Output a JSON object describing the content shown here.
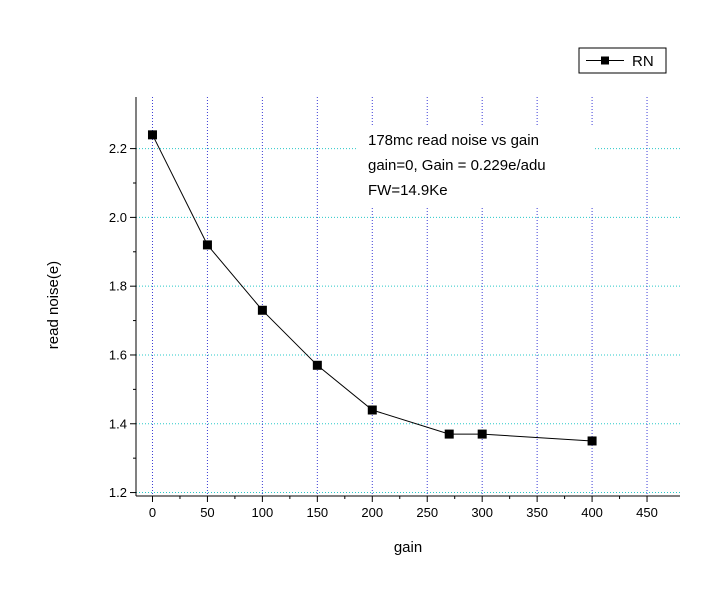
{
  "chart_data": {
    "type": "line",
    "x": [
      0,
      50,
      100,
      150,
      200,
      270,
      300,
      400
    ],
    "series": [
      {
        "name": "RN",
        "values": [
          2.24,
          1.92,
          1.73,
          1.57,
          1.44,
          1.37,
          1.37,
          1.35
        ]
      }
    ],
    "xlabel": "gain",
    "ylabel": "read noise(e)",
    "xlim": [
      -15,
      480
    ],
    "ylim": [
      1.19,
      2.35
    ],
    "xticks": [
      0,
      50,
      100,
      150,
      200,
      250,
      300,
      350,
      400,
      450
    ],
    "xtick_labels": [
      "0",
      "50",
      "100",
      "150",
      "200",
      "250",
      "300",
      "350",
      "400",
      "450"
    ],
    "yticks": [
      1.2,
      1.4,
      1.6,
      1.8,
      2.0,
      2.2
    ],
    "ytick_labels": [
      "1.2",
      "1.4",
      "1.6",
      "1.8",
      "2.0",
      "2.2"
    ],
    "annotations": [
      "178mc read noise vs gain",
      "gain=0, Gain = 0.229e/adu",
      "FW=14.9Ke"
    ],
    "grid": true,
    "legend_position": "top-right",
    "colors": {
      "line": "#000000",
      "marker": "#000000",
      "vertical_grid": "#3b3bd6",
      "horizontal_grid": "#28c8c8",
      "axis": "#000000"
    }
  }
}
